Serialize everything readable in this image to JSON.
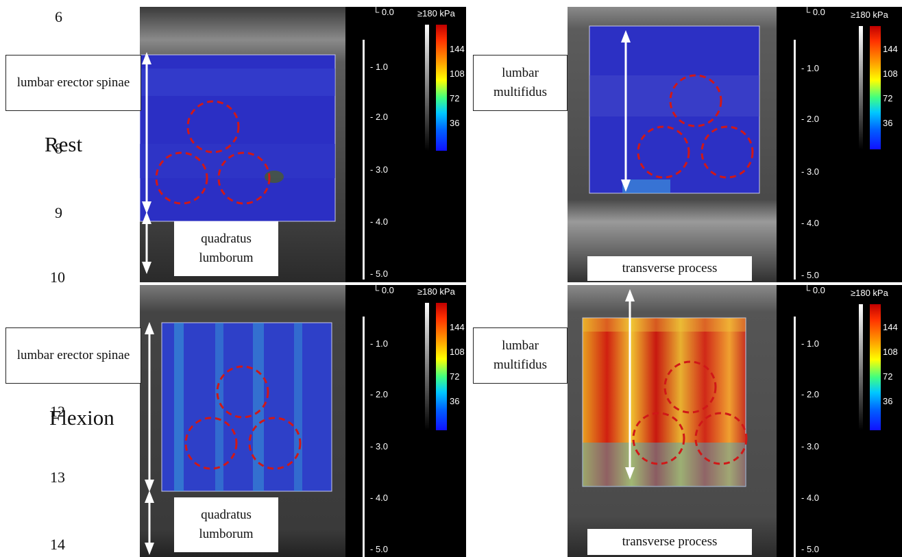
{
  "line_numbers": [
    "6",
    "8",
    "9",
    "10",
    "12",
    "13",
    "14"
  ],
  "row_labels": {
    "rest": "Rest",
    "flexion": "Flexion"
  },
  "labels": {
    "lumbar_erector_spinae": "lumbar erector spinae",
    "lumbar_multifidus": "lumbar multifidus",
    "quadratus_lumborum": "quadratus lumborum",
    "transverse_process": "transverse process"
  },
  "depth_scale": [
    "0.0",
    "1.0",
    "2.0",
    "3.0",
    "4.0",
    "5.0"
  ],
  "colorbar": {
    "max_label": "≥180 kPa",
    "ticks": [
      "144",
      "108",
      "72",
      "36"
    ]
  },
  "colors": {
    "annotation_circle": "#d01818",
    "arrow": "#ffffff",
    "low_stiffness": "#2020c8",
    "high_stiffness": "#e02010"
  }
}
